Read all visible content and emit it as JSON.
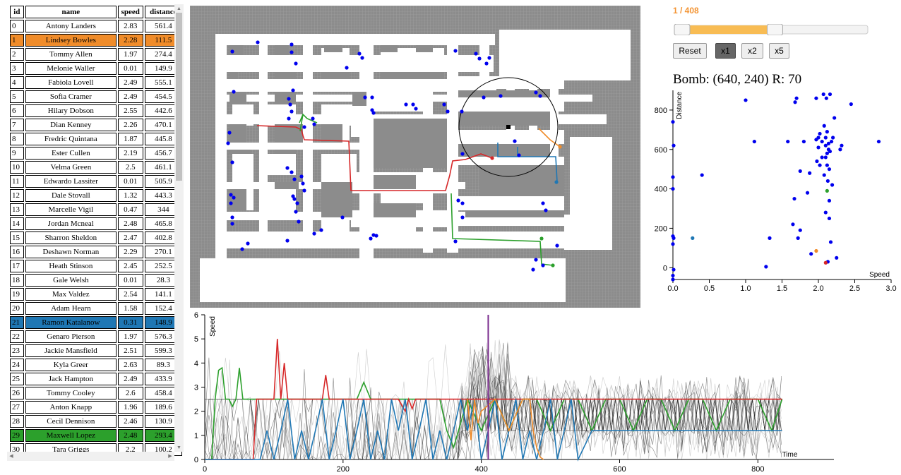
{
  "table": {
    "headers": {
      "id": "id",
      "name": "name",
      "speed": "speed",
      "distance": "distance"
    },
    "rows": [
      {
        "id": "0",
        "name": "Antony Landers",
        "speed": "2.83",
        "distance": "561.4",
        "hl": ""
      },
      {
        "id": "1",
        "name": "Lindsey Bowles",
        "speed": "2.28",
        "distance": "111.5",
        "hl": "orange"
      },
      {
        "id": "2",
        "name": "Tommy Allen",
        "speed": "1.97",
        "distance": "274.4",
        "hl": ""
      },
      {
        "id": "3",
        "name": "Melonie Waller",
        "speed": "0.01",
        "distance": "149.9",
        "hl": ""
      },
      {
        "id": "4",
        "name": "Fabiola Lovell",
        "speed": "2.49",
        "distance": "555.1",
        "hl": ""
      },
      {
        "id": "5",
        "name": "Sofia Cramer",
        "speed": "2.49",
        "distance": "454.5",
        "hl": ""
      },
      {
        "id": "6",
        "name": "Hilary Dobson",
        "speed": "2.55",
        "distance": "442.6",
        "hl": ""
      },
      {
        "id": "7",
        "name": "Dian Kenney",
        "speed": "2.26",
        "distance": "470.1",
        "hl": ""
      },
      {
        "id": "8",
        "name": "Fredric Quintana",
        "speed": "1.87",
        "distance": "445.8",
        "hl": ""
      },
      {
        "id": "9",
        "name": "Ester Cullen",
        "speed": "2.19",
        "distance": "456.7",
        "hl": ""
      },
      {
        "id": "10",
        "name": "Velma Green",
        "speed": "2.5",
        "distance": "461.1",
        "hl": ""
      },
      {
        "id": "11",
        "name": "Edwardo Lassiter",
        "speed": "0.01",
        "distance": "505.9",
        "hl": ""
      },
      {
        "id": "12",
        "name": "Dale Stovall",
        "speed": "1.32",
        "distance": "443.3",
        "hl": ""
      },
      {
        "id": "13",
        "name": "Marcelle Vigil",
        "speed": "0.47",
        "distance": "344",
        "hl": ""
      },
      {
        "id": "14",
        "name": "Jordan Mcneal",
        "speed": "2.48",
        "distance": "465.8",
        "hl": ""
      },
      {
        "id": "15",
        "name": "Sharron Sheldon",
        "speed": "2.47",
        "distance": "402.8",
        "hl": ""
      },
      {
        "id": "16",
        "name": "Deshawn Norman",
        "speed": "2.29",
        "distance": "270.1",
        "hl": ""
      },
      {
        "id": "17",
        "name": "Heath Stinson",
        "speed": "2.45",
        "distance": "252.5",
        "hl": ""
      },
      {
        "id": "18",
        "name": "Gale Welsh",
        "speed": "0.01",
        "distance": "28.3",
        "hl": ""
      },
      {
        "id": "19",
        "name": "Max Valdez",
        "speed": "2.54",
        "distance": "141.1",
        "hl": ""
      },
      {
        "id": "20",
        "name": "Adam Hearn",
        "speed": "1.58",
        "distance": "152.4",
        "hl": ""
      },
      {
        "id": "21",
        "name": "Ramon Katalanow",
        "speed": "0.31",
        "distance": "148.9",
        "hl": "blue"
      },
      {
        "id": "22",
        "name": "Genaro Pierson",
        "speed": "1.97",
        "distance": "576.3",
        "hl": ""
      },
      {
        "id": "23",
        "name": "Jackie Mansfield",
        "speed": "2.51",
        "distance": "599.3",
        "hl": ""
      },
      {
        "id": "24",
        "name": "Kyla Greer",
        "speed": "2.63",
        "distance": "89.3",
        "hl": ""
      },
      {
        "id": "25",
        "name": "Jack Hampton",
        "speed": "2.49",
        "distance": "433.9",
        "hl": ""
      },
      {
        "id": "26",
        "name": "Tommy Cooley",
        "speed": "2.6",
        "distance": "458.4",
        "hl": ""
      },
      {
        "id": "27",
        "name": "Anton Knapp",
        "speed": "1.96",
        "distance": "189.6",
        "hl": ""
      },
      {
        "id": "28",
        "name": "Cecil Dennison",
        "speed": "2.46",
        "distance": "130.9",
        "hl": ""
      },
      {
        "id": "29",
        "name": "Maxwell Lopez",
        "speed": "2.48",
        "distance": "293.4",
        "hl": "green"
      },
      {
        "id": "30",
        "name": "Tara Griggs",
        "speed": "2.2",
        "distance": "100.2",
        "hl": ""
      }
    ]
  },
  "controls": {
    "frame_label": "1 / 408",
    "slider_value": 0.52,
    "buttons": {
      "reset": "Reset",
      "x1": "x1",
      "x2": "x2",
      "x5": "x5"
    },
    "active_speed": "x1"
  },
  "bomb": {
    "label": "Bomb: (640, 240) R: 70"
  },
  "colors": {
    "orange": "#f08c2a",
    "blue": "#1f77b4",
    "green": "#2ca02c",
    "red": "#d62728",
    "purple": "#7b2d8e",
    "agent": "#0000ee",
    "wall": "#8c8c8c",
    "grid": "#a0a0a0",
    "accent": "#f8bc54"
  },
  "chart_data": [
    {
      "type": "scatter",
      "xlabel": "Speed",
      "ylabel": "Distance",
      "xlim": [
        0,
        3.0
      ],
      "ylim": [
        -60,
        900
      ],
      "xticks": [
        "0.0",
        "0.5",
        "1.0",
        "1.5",
        "2.0",
        "2.5",
        "3.0"
      ],
      "yticks": [
        "0",
        "200",
        "400",
        "600",
        "800"
      ],
      "series": [
        {
          "color_key": "agent",
          "points": [
            [
              0.0,
              -60
            ],
            [
              0.01,
              -10
            ],
            [
              0.0,
              120
            ],
            [
              0.01,
              150
            ],
            [
              0.0,
              160
            ],
            [
              0.0,
              400
            ],
            [
              0.0,
              460
            ],
            [
              0.01,
              620
            ],
            [
              0.0,
              740
            ],
            [
              0.4,
              470
            ],
            [
              1.0,
              850
            ],
            [
              1.12,
              640
            ],
            [
              1.28,
              5
            ],
            [
              1.33,
              150
            ],
            [
              1.58,
              640
            ],
            [
              1.65,
              220
            ],
            [
              1.67,
              350
            ],
            [
              1.68,
              840
            ],
            [
              1.7,
              860
            ],
            [
              1.72,
              150
            ],
            [
              1.75,
              190
            ],
            [
              1.75,
              490
            ],
            [
              1.8,
              640
            ],
            [
              1.85,
              380
            ],
            [
              1.88,
              480
            ],
            [
              1.9,
              70
            ],
            [
              1.97,
              650
            ],
            [
              1.97,
              860
            ],
            [
              1.98,
              540
            ],
            [
              2.0,
              610
            ],
            [
              2.0,
              660
            ],
            [
              2.02,
              520
            ],
            [
              2.02,
              680
            ],
            [
              2.05,
              560
            ],
            [
              2.05,
              640
            ],
            [
              2.07,
              880
            ],
            [
              2.08,
              470
            ],
            [
              2.08,
              720
            ],
            [
              2.1,
              280
            ],
            [
              2.1,
              560
            ],
            [
              2.1,
              620
            ],
            [
              2.1,
              660
            ],
            [
              2.11,
              860
            ],
            [
              2.12,
              520
            ],
            [
              2.12,
              580
            ],
            [
              2.12,
              690
            ],
            [
              2.13,
              30
            ],
            [
              2.13,
              440
            ],
            [
              2.14,
              600
            ],
            [
              2.14,
              630
            ],
            [
              2.15,
              250
            ],
            [
              2.15,
              340
            ],
            [
              2.15,
              500
            ],
            [
              2.16,
              590
            ],
            [
              2.16,
              880
            ],
            [
              2.17,
              130
            ],
            [
              2.18,
              640
            ],
            [
              2.19,
              420
            ],
            [
              2.2,
              660
            ],
            [
              2.22,
              760
            ],
            [
              2.25,
              50
            ],
            [
              2.3,
              600
            ],
            [
              2.32,
              620
            ],
            [
              2.45,
              830
            ],
            [
              2.83,
              640
            ],
            [
              0.0,
              -40
            ]
          ]
        },
        {
          "color_key": "orange",
          "points": [
            [
              1.97,
              85
            ]
          ]
        },
        {
          "color_key": "blue",
          "points": [
            [
              0.27,
              150
            ]
          ]
        },
        {
          "color_key": "green",
          "points": [
            [
              2.12,
              390
            ]
          ]
        },
        {
          "color_key": "red",
          "points": [
            [
              2.1,
              25
            ]
          ]
        }
      ]
    },
    {
      "type": "line",
      "xlabel": "Time",
      "ylabel": "Speed",
      "xlim": [
        0,
        910
      ],
      "ylim": [
        0,
        6
      ],
      "xticks": [
        "0",
        "200",
        "400",
        "600",
        "800"
      ],
      "yticks": [
        "0",
        "1",
        "2",
        "3",
        "4",
        "5",
        "6"
      ],
      "current_time": 410,
      "series": [
        {
          "color_key": "green",
          "x": [
            0,
            5,
            10,
            15,
            20,
            25,
            30,
            35,
            40,
            45,
            50,
            55,
            60,
            70,
            80,
            90,
            100,
            120,
            150,
            180,
            200,
            220,
            230,
            240,
            260,
            280,
            300,
            320,
            330,
            340,
            350,
            360,
            380,
            400,
            420,
            440,
            460,
            480,
            500,
            520,
            540,
            560,
            580,
            600,
            620,
            640,
            660,
            680,
            700,
            720,
            740,
            760,
            780,
            800,
            820,
            835
          ],
          "y": [
            0,
            0,
            0,
            2.5,
            3.7,
            3.8,
            2.5,
            2.5,
            2.2,
            2.5,
            3.8,
            2.5,
            2.5,
            2.5,
            2.5,
            2.5,
            2.5,
            2.5,
            2.5,
            2.5,
            2.5,
            2.5,
            3.2,
            2.5,
            2.5,
            2.5,
            2.5,
            2.5,
            2.5,
            2.5,
            1.2,
            0.5,
            2.5,
            1.2,
            2.5,
            1.2,
            2.5,
            2.5,
            1.2,
            2.5,
            2.5,
            1.2,
            2.5,
            2.5,
            1.2,
            2.5,
            2.5,
            1.2,
            2.5,
            2.5,
            1.2,
            2.5,
            2.5,
            2.5,
            1.2,
            2.5
          ]
        },
        {
          "color_key": "red",
          "x": [
            0,
            70,
            75,
            80,
            100,
            105,
            110,
            115,
            120,
            150,
            170,
            175,
            180,
            200,
            220,
            240,
            260,
            280,
            290,
            295,
            300,
            305,
            310,
            320,
            340,
            360,
            380,
            400,
            420,
            440,
            460,
            480,
            500,
            520,
            540,
            560,
            580,
            600,
            620,
            640,
            660,
            680,
            700,
            720,
            740,
            760,
            780,
            800,
            820,
            835
          ],
          "y": [
            0,
            0,
            2.5,
            2.5,
            2.5,
            5.0,
            2.5,
            4.0,
            2.5,
            2.5,
            2.5,
            3.5,
            2.5,
            2.5,
            2.5,
            2.5,
            2.5,
            2.5,
            2.0,
            2.5,
            2.1,
            2.5,
            2.5,
            2.5,
            2.5,
            2.5,
            2.5,
            2.5,
            2.5,
            2.5,
            2.5,
            2.5,
            2.5,
            2.5,
            2.5,
            2.5,
            2.5,
            2.5,
            2.5,
            2.5,
            2.5,
            2.5,
            2.5,
            2.5,
            2.5,
            2.5,
            2.5,
            2.5,
            2.5,
            2.5
          ]
        },
        {
          "color_key": "blue",
          "x": [
            0,
            80,
            90,
            100,
            110,
            120,
            130,
            140,
            150,
            160,
            170,
            180,
            190,
            200,
            210,
            220,
            230,
            240,
            250,
            260,
            270,
            280,
            290,
            300,
            310,
            320,
            330,
            340,
            350,
            360,
            370,
            380,
            390,
            400,
            410,
            420,
            430,
            440,
            450,
            460,
            470,
            480,
            490,
            500,
            510,
            520,
            530,
            540,
            560,
            600,
            640,
            700,
            760,
            835
          ],
          "y": [
            0,
            0,
            1.2,
            0,
            1.2,
            2.5,
            0,
            1.2,
            0,
            1.2,
            2.5,
            0,
            1.2,
            2.5,
            0,
            1.2,
            2.5,
            0,
            1.2,
            0,
            2.5,
            1.2,
            2.5,
            0,
            1.2,
            2.5,
            0,
            1.2,
            0,
            1.2,
            2.5,
            1.2,
            2.5,
            0,
            1.2,
            2.5,
            0,
            1.2,
            2.5,
            0,
            1.2,
            0,
            1.2,
            2.5,
            0,
            1.2,
            2.5,
            0,
            1.2,
            1.2,
            1.2,
            1.2,
            1.2,
            1.2
          ]
        },
        {
          "color_key": "orange",
          "x": [
            380,
            385,
            390,
            395,
            400,
            420,
            440,
            460,
            470,
            475,
            480,
            485,
            490
          ],
          "y": [
            2.5,
            0.8,
            2.5,
            1.5,
            2.0,
            2.5,
            1.2,
            2.5,
            2.5,
            1.2,
            0.5,
            0.1,
            0
          ]
        }
      ]
    }
  ]
}
